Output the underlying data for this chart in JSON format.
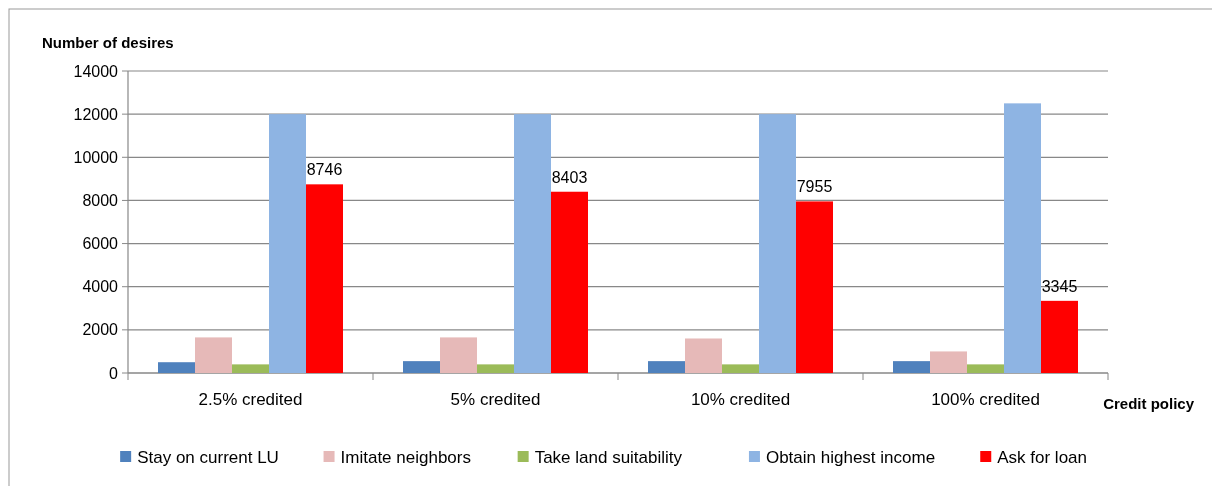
{
  "chart_data": {
    "type": "bar",
    "ylabel": "Number of desires",
    "xlabel": "Credit policy",
    "categories": [
      "2.5% credited",
      "5% credited",
      "10% credited",
      "100% credited"
    ],
    "series": [
      {
        "name": "Stay on current LU",
        "color": "#4f81bd",
        "values": [
          500,
          550,
          550,
          550
        ]
      },
      {
        "name": "Imitate neighbors",
        "color": "#e6b9b8",
        "values": [
          1650,
          1650,
          1600,
          1000
        ]
      },
      {
        "name": "Take land suitability",
        "color": "#9bbb59",
        "values": [
          400,
          400,
          400,
          400
        ]
      },
      {
        "name": "Obtain highest income",
        "color": "#8eb4e3",
        "values": [
          12000,
          12000,
          12000,
          12500
        ]
      },
      {
        "name": "Ask for loan",
        "color": "#ff0000",
        "values": [
          8746,
          8403,
          7955,
          3345
        ],
        "value_labels": [
          "8746",
          "8403",
          "7955",
          "3345"
        ]
      }
    ],
    "ylim": [
      0,
      14000
    ],
    "yticks": [
      0,
      2000,
      4000,
      6000,
      8000,
      10000,
      12000,
      14000
    ],
    "grid": "y",
    "legend": "bottom"
  }
}
